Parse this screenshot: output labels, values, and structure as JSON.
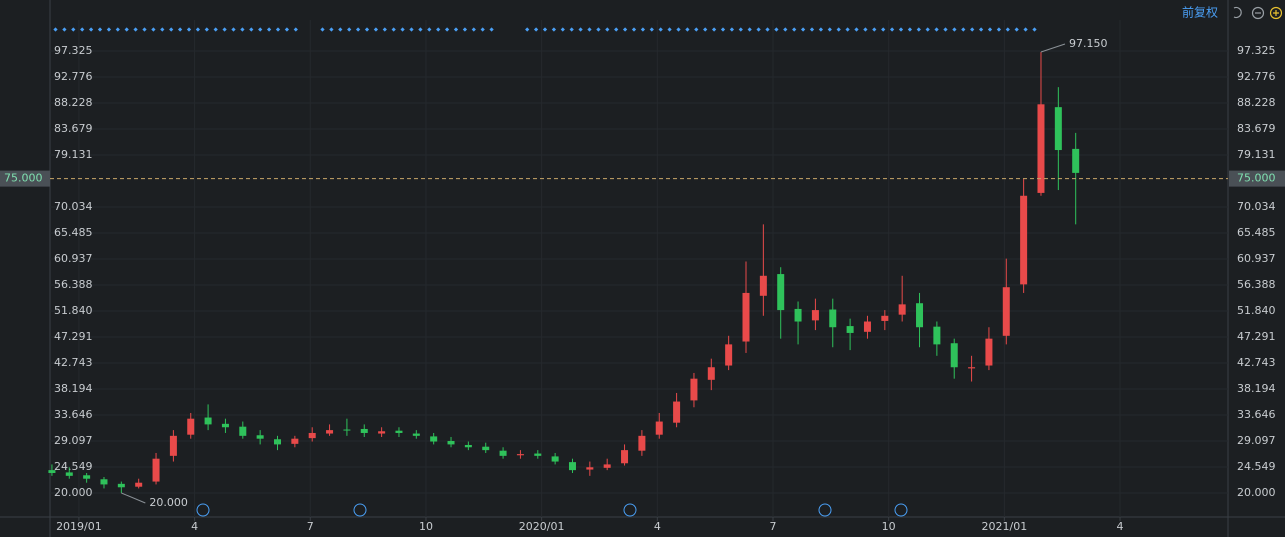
{
  "toolbar": {
    "adjust_label": "前复权"
  },
  "chart_data": {
    "type": "candlestick",
    "up_color": "#e84a4a",
    "down_color": "#2fc25b",
    "x": [
      -0.7,
      -0.25,
      0.2,
      0.65,
      1.1,
      1.55,
      2.0,
      2.45,
      2.9,
      3.35,
      3.8,
      4.25,
      4.7,
      5.15,
      5.6,
      6.05,
      6.5,
      6.95,
      7.4,
      7.85,
      8.3,
      8.75,
      9.2,
      9.65,
      10.1,
      10.55,
      11.0,
      11.45,
      11.9,
      12.35,
      12.8,
      13.25,
      13.7,
      14.15,
      14.6,
      15.05,
      15.5,
      15.95,
      16.4,
      16.85,
      17.3,
      17.75,
      18.2,
      18.65,
      19.1,
      19.55,
      20.0,
      20.45,
      20.9,
      21.35,
      21.8,
      22.25,
      22.7,
      23.15,
      23.6,
      24.05,
      24.5,
      24.95,
      25.4,
      25.85
    ],
    "open": [
      24,
      23.6,
      23.1,
      22.4,
      21.6,
      21.1,
      22,
      26.5,
      30.2,
      33.2,
      32.1,
      31.6,
      30.1,
      29.4,
      28.6,
      29.6,
      30.4,
      31.1,
      31.2,
      30.4,
      30.9,
      30.4,
      29.9,
      29.1,
      28.4,
      28.1,
      27.4,
      26.6,
      26.9,
      26.4,
      25.4,
      24.1,
      24.4,
      25.2,
      27.4,
      30.2,
      32.3,
      36.2,
      39.8,
      42.3,
      46.5,
      54.5,
      58.3,
      52.2,
      50.2,
      52.1,
      49.2,
      48.2,
      50.1,
      51.2,
      53.2,
      49.1,
      46.2,
      41.8,
      42.3,
      47.5,
      56.5,
      72.5,
      87.5,
      80.2
    ],
    "high": [
      25,
      24.5,
      23.5,
      22.8,
      22,
      22.5,
      27,
      31,
      34,
      35.5,
      33,
      32.5,
      31,
      30,
      30,
      31.5,
      32,
      33,
      32,
      31.5,
      31.5,
      31,
      30.5,
      29.8,
      29,
      28.8,
      28,
      27.5,
      27.5,
      27,
      26,
      25.5,
      26,
      28.5,
      31,
      34,
      37.5,
      41,
      43.5,
      47.5,
      60.5,
      67,
      59.5,
      53.5,
      54,
      54,
      50.5,
      51,
      52,
      58,
      55,
      50,
      47,
      44,
      49,
      61,
      75,
      97.15,
      91,
      83
    ],
    "low": [
      23,
      22.5,
      21.8,
      20.8,
      20,
      20.8,
      21.5,
      25.5,
      29.5,
      31,
      30.5,
      29.5,
      28.5,
      27.5,
      28,
      29,
      30,
      30,
      29.8,
      29.8,
      29.8,
      29.5,
      28.5,
      28,
      27.5,
      27,
      26,
      26,
      26,
      25,
      23.5,
      23,
      24,
      24.8,
      26.5,
      29.5,
      31.5,
      35,
      38,
      41.5,
      44.5,
      51,
      47,
      46,
      48.5,
      45.5,
      45,
      47,
      48.5,
      50,
      45.5,
      44,
      40,
      39.5,
      41.5,
      46,
      55,
      72,
      73,
      67
    ],
    "close": [
      23.5,
      23,
      22.5,
      21.5,
      21,
      21.8,
      26,
      30,
      33,
      32,
      31.5,
      30,
      29.5,
      28.5,
      29.5,
      30.5,
      31,
      31,
      30.5,
      30.8,
      30.5,
      30,
      29,
      28.5,
      28,
      27.5,
      26.5,
      26.8,
      26.5,
      25.5,
      24,
      24.5,
      25,
      27.5,
      30,
      32.5,
      36,
      40,
      42,
      46,
      55,
      58,
      52,
      50,
      52,
      49,
      48,
      50,
      51,
      53,
      49,
      46,
      42,
      42,
      47,
      56,
      72,
      88,
      80,
      76
    ],
    "xlim": [
      -0.75,
      29.8
    ],
    "xticks": [
      {
        "value": 0,
        "label": "2019/01"
      },
      {
        "value": 3,
        "label": "4"
      },
      {
        "value": 6,
        "label": "7"
      },
      {
        "value": 9,
        "label": "10"
      },
      {
        "value": 12,
        "label": "2020/01"
      },
      {
        "value": 15,
        "label": "4"
      },
      {
        "value": 18,
        "label": "7"
      },
      {
        "value": 21,
        "label": "10"
      },
      {
        "value": 24,
        "label": "2021/01"
      },
      {
        "value": 27,
        "label": "4"
      }
    ],
    "ylim": [
      15.8,
      99.6
    ],
    "yticks": [
      {
        "value": 20,
        "label": "20.000"
      },
      24.549,
      29.097,
      33.646,
      38.194,
      42.743,
      47.291,
      {
        "value": 51.84,
        "label": "51.840"
      },
      56.388,
      60.937,
      65.485,
      70.034,
      79.131,
      83.679,
      88.228,
      92.776,
      97.325
    ],
    "crosshair": {
      "value": 75,
      "label": "75.000"
    },
    "annotations": [
      {
        "x": 24.95,
        "value": 97.15,
        "label": "97.150"
      },
      {
        "x": 1.1,
        "value": 20,
        "label": "20.000"
      }
    ],
    "grid": true
  }
}
